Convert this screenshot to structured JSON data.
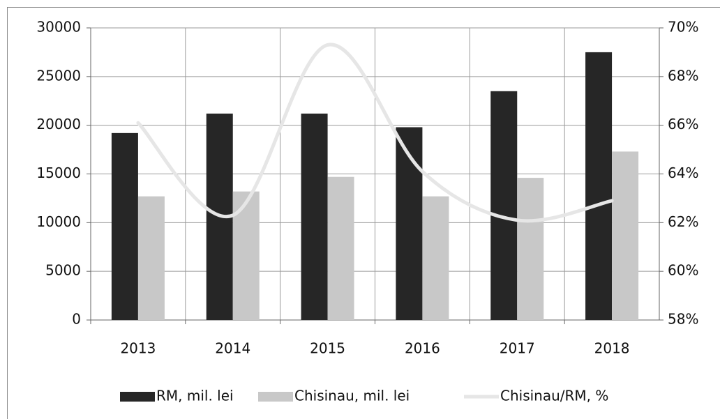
{
  "chart_data": {
    "type": "bar",
    "categories": [
      "2013",
      "2014",
      "2015",
      "2016",
      "2017",
      "2018"
    ],
    "series": [
      {
        "name": "RM, mil. lei",
        "color": "#262626",
        "values": [
          19200,
          21200,
          21200,
          19800,
          23500,
          27500
        ]
      },
      {
        "name": "Chisinau, mil. lei",
        "color": "#c8c8c8",
        "values": [
          12700,
          13200,
          14700,
          12700,
          14600,
          17300
        ]
      },
      {
        "name": "Chisinau/RM, %",
        "color": "#e6e6e6",
        "type": "line",
        "axis": "y2",
        "values": [
          66.1,
          62.3,
          69.3,
          64.1,
          62.1,
          62.9
        ]
      }
    ],
    "ylim": [
      0,
      30000
    ],
    "yticks": [
      0,
      5000,
      10000,
      15000,
      20000,
      25000,
      30000
    ],
    "y2lim": [
      58,
      70
    ],
    "y2ticks": [
      {
        "value": 58,
        "label": "58%"
      },
      {
        "value": 60,
        "label": "60%"
      },
      {
        "value": 62,
        "label": "62%"
      },
      {
        "value": 64,
        "label": "64%"
      },
      {
        "value": 66,
        "label": "66%"
      },
      {
        "value": 68,
        "label": "68%"
      },
      {
        "value": 70,
        "label": "70%"
      }
    ],
    "grid": true,
    "legend": "bottom"
  }
}
